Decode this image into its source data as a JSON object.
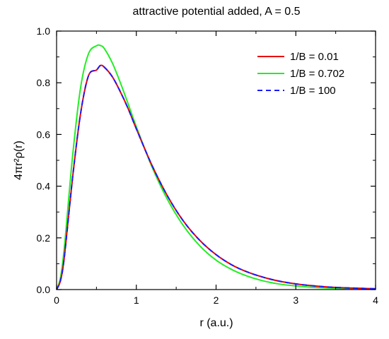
{
  "chart_data": {
    "type": "line",
    "title": "attractive potential added, A = 0.5",
    "xlabel": "r (a.u.)",
    "ylabel": "4πr²ρ(r)",
    "xlim": [
      0,
      4
    ],
    "ylim": [
      0,
      1.0
    ],
    "x_ticks": [
      "0",
      "1",
      "2",
      "3",
      "4"
    ],
    "y_ticks": [
      "0.0",
      "0.2",
      "0.4",
      "0.6",
      "0.8",
      "1.0"
    ],
    "grid": false,
    "legend_position": "top-right",
    "x": [
      0,
      0.05,
      0.1,
      0.2,
      0.3,
      0.4,
      0.5,
      0.55,
      0.6,
      0.7,
      0.8,
      0.9,
      1.0,
      1.2,
      1.4,
      1.6,
      1.8,
      2.0,
      2.2,
      2.4,
      2.6,
      2.8,
      3.0,
      3.2,
      3.4,
      3.6,
      3.8,
      4.0
    ],
    "series": [
      {
        "name": "1/B = 0.01",
        "color": "#e8000b",
        "dash": "solid",
        "values": [
          0,
          0.036,
          0.133,
          0.431,
          0.679,
          0.827,
          0.849,
          0.867,
          0.86,
          0.823,
          0.765,
          0.698,
          0.622,
          0.478,
          0.357,
          0.261,
          0.189,
          0.135,
          0.095,
          0.067,
          0.047,
          0.032,
          0.022,
          0.015,
          0.01,
          0.007,
          0.005,
          0.003
        ]
      },
      {
        "name": "1/B = 0.702",
        "color": "#22ee22",
        "dash": "solid",
        "values": [
          0,
          0.048,
          0.171,
          0.514,
          0.779,
          0.912,
          0.943,
          0.944,
          0.932,
          0.876,
          0.8,
          0.716,
          0.63,
          0.472,
          0.343,
          0.243,
          0.168,
          0.114,
          0.077,
          0.051,
          0.033,
          0.021,
          0.014,
          0.009,
          0.006,
          0.004,
          0.002,
          0.001
        ]
      },
      {
        "name": "1/B = 100",
        "color": "#1a1aff",
        "dash": "dashed",
        "values": [
          0,
          0.036,
          0.133,
          0.431,
          0.679,
          0.827,
          0.849,
          0.867,
          0.86,
          0.823,
          0.765,
          0.698,
          0.622,
          0.478,
          0.357,
          0.261,
          0.189,
          0.135,
          0.095,
          0.067,
          0.047,
          0.032,
          0.022,
          0.015,
          0.01,
          0.007,
          0.005,
          0.003
        ]
      }
    ]
  }
}
